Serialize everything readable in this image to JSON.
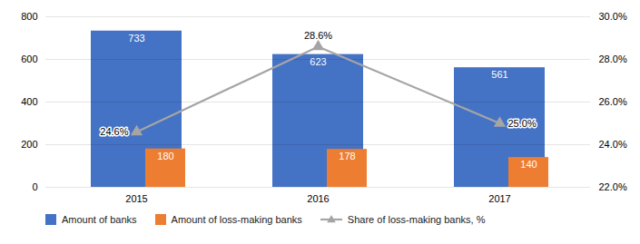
{
  "chart_data": {
    "type": "bar",
    "categories": [
      "2015",
      "2016",
      "2017"
    ],
    "series": [
      {
        "name": "Amount of banks",
        "type": "bar",
        "color": "#4472C4",
        "values": [
          733,
          623,
          561
        ]
      },
      {
        "name": "Amount of loss-making banks",
        "type": "bar",
        "color": "#ED7D31",
        "values": [
          180,
          178,
          140
        ]
      },
      {
        "name": "Share of loss-making banks, %",
        "type": "line",
        "axis": "y2",
        "color": "#A5A5A5",
        "marker": "triangle",
        "values": [
          24.6,
          28.6,
          25.0
        ],
        "value_labels": [
          "24.6%",
          "28.6%",
          "25.0%"
        ]
      }
    ],
    "ylim": [
      0,
      800
    ],
    "yticks": [
      0,
      200,
      400,
      600,
      800
    ],
    "y2lim": [
      22.0,
      30.0
    ],
    "y2ticks": [
      {
        "value": 22.0,
        "label": "22.0%"
      },
      {
        "value": 24.0,
        "label": "24.0%"
      },
      {
        "value": 26.0,
        "label": "26.0%"
      },
      {
        "value": 28.0,
        "label": "28.0%"
      },
      {
        "value": 30.0,
        "label": "30.0%"
      }
    ],
    "grid": true,
    "data_labels": true,
    "legend": "lower left"
  }
}
